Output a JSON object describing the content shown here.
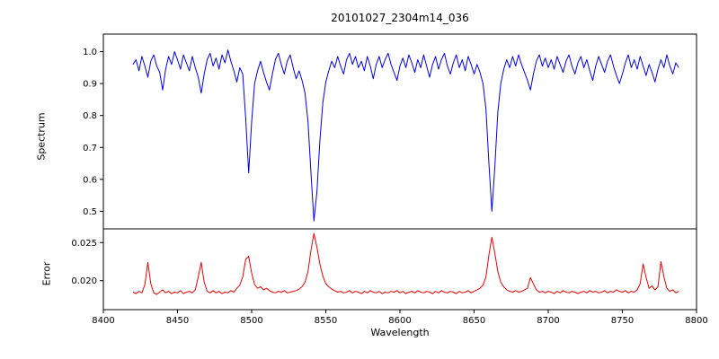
{
  "figure": {
    "title": "20101027_2304m14_036",
    "xlabel": "Wavelength",
    "ylabel_top": "Spectrum",
    "ylabel_bottom": "Error",
    "background": "#ffffff",
    "axis_color": "#000000"
  },
  "chart_data": [
    {
      "type": "line",
      "name": "spectrum",
      "ylabel": "Spectrum",
      "color": "#0000ee",
      "xlim": [
        8400,
        8800
      ],
      "ylim": [
        0.445,
        1.055
      ],
      "yticks": [
        1.0,
        0.9,
        0.8,
        0.7,
        0.6,
        0.5
      ],
      "ytick_labels": [
        "1.0",
        "0.9",
        "0.8",
        "0.7",
        "0.6",
        "0.5"
      ],
      "x_start": 8420,
      "x_step": 2,
      "absorption_features": [
        {
          "center": 8498,
          "min_value": 0.62
        },
        {
          "center": 8542,
          "min_value": 0.47
        },
        {
          "center": 8662,
          "min_value": 0.5
        }
      ],
      "y": [
        0.96,
        0.975,
        0.94,
        0.985,
        0.955,
        0.92,
        0.97,
        0.99,
        0.955,
        0.935,
        0.88,
        0.945,
        0.985,
        0.96,
        1.0,
        0.975,
        0.945,
        0.99,
        0.965,
        0.94,
        0.985,
        0.95,
        0.92,
        0.87,
        0.93,
        0.975,
        0.995,
        0.955,
        0.98,
        0.945,
        0.99,
        0.965,
        1.005,
        0.97,
        0.94,
        0.905,
        0.95,
        0.93,
        0.79,
        0.62,
        0.78,
        0.9,
        0.94,
        0.97,
        0.935,
        0.905,
        0.88,
        0.93,
        0.975,
        0.995,
        0.96,
        0.93,
        0.97,
        0.99,
        0.95,
        0.915,
        0.94,
        0.91,
        0.87,
        0.78,
        0.62,
        0.47,
        0.56,
        0.72,
        0.84,
        0.905,
        0.94,
        0.97,
        0.95,
        0.985,
        0.955,
        0.93,
        0.975,
        0.995,
        0.96,
        0.985,
        0.95,
        0.97,
        0.94,
        0.985,
        0.955,
        0.915,
        0.96,
        0.985,
        0.95,
        0.975,
        0.995,
        0.96,
        0.935,
        0.91,
        0.955,
        0.98,
        0.95,
        0.99,
        0.965,
        0.935,
        0.975,
        0.95,
        0.99,
        0.955,
        0.92,
        0.96,
        0.985,
        0.945,
        0.975,
        0.995,
        0.955,
        0.93,
        0.965,
        0.99,
        0.95,
        0.975,
        0.94,
        0.985,
        0.96,
        0.93,
        0.96,
        0.935,
        0.9,
        0.82,
        0.65,
        0.5,
        0.64,
        0.81,
        0.9,
        0.945,
        0.975,
        0.95,
        0.985,
        0.955,
        0.99,
        0.96,
        0.935,
        0.91,
        0.88,
        0.93,
        0.97,
        0.99,
        0.955,
        0.98,
        0.95,
        0.975,
        0.945,
        0.985,
        0.96,
        0.935,
        0.97,
        0.99,
        0.955,
        0.93,
        0.965,
        0.985,
        0.95,
        0.975,
        0.94,
        0.91,
        0.955,
        0.985,
        0.96,
        0.935,
        0.97,
        0.99,
        0.955,
        0.925,
        0.9,
        0.93,
        0.965,
        0.99,
        0.95,
        0.975,
        0.945,
        0.985,
        0.955,
        0.925,
        0.96,
        0.935,
        0.905,
        0.945,
        0.975,
        0.95,
        0.99,
        0.955,
        0.93,
        0.965,
        0.95
      ]
    },
    {
      "type": "line",
      "name": "error",
      "ylabel": "Error",
      "color": "#ee0000",
      "xlim": [
        8400,
        8800
      ],
      "ylim": [
        0.0162,
        0.0268
      ],
      "yticks": [
        0.025,
        0.02
      ],
      "ytick_labels": [
        "0.025",
        "0.020"
      ],
      "xticks": [
        8400,
        8450,
        8500,
        8550,
        8600,
        8650,
        8700,
        8750,
        8800
      ],
      "x_start": 8420,
      "x_step": 2,
      "y": [
        0.0185,
        0.0183,
        0.0186,
        0.0184,
        0.0195,
        0.0224,
        0.0196,
        0.0184,
        0.0182,
        0.0185,
        0.0188,
        0.0184,
        0.0186,
        0.0183,
        0.0185,
        0.0184,
        0.0187,
        0.0183,
        0.0185,
        0.0186,
        0.0184,
        0.0188,
        0.0205,
        0.0224,
        0.0198,
        0.0186,
        0.0184,
        0.0187,
        0.0184,
        0.0186,
        0.0183,
        0.0185,
        0.0184,
        0.0187,
        0.0185,
        0.019,
        0.0194,
        0.0205,
        0.0228,
        0.0232,
        0.021,
        0.0195,
        0.019,
        0.0192,
        0.0188,
        0.019,
        0.0187,
        0.0185,
        0.0184,
        0.0186,
        0.0185,
        0.0187,
        0.0184,
        0.0185,
        0.0186,
        0.0187,
        0.0189,
        0.0192,
        0.0198,
        0.0212,
        0.024,
        0.0262,
        0.0244,
        0.0222,
        0.0206,
        0.0196,
        0.0192,
        0.0189,
        0.0187,
        0.0185,
        0.0186,
        0.0184,
        0.0185,
        0.0187,
        0.0184,
        0.0186,
        0.0185,
        0.0183,
        0.0186,
        0.0184,
        0.0187,
        0.0185,
        0.0184,
        0.0186,
        0.0183,
        0.0185,
        0.0184,
        0.0186,
        0.0185,
        0.0187,
        0.0184,
        0.0186,
        0.0183,
        0.0185,
        0.0186,
        0.0184,
        0.0187,
        0.0185,
        0.0184,
        0.0186,
        0.0185,
        0.0183,
        0.0186,
        0.0184,
        0.0187,
        0.0185,
        0.0184,
        0.0186,
        0.0185,
        0.0183,
        0.0186,
        0.0184,
        0.0185,
        0.0187,
        0.0184,
        0.0186,
        0.0188,
        0.019,
        0.0194,
        0.0205,
        0.0234,
        0.0257,
        0.0236,
        0.0212,
        0.0198,
        0.0192,
        0.0188,
        0.0186,
        0.0185,
        0.0187,
        0.0185,
        0.0186,
        0.0188,
        0.019,
        0.0204,
        0.0196,
        0.0188,
        0.0185,
        0.0186,
        0.0184,
        0.0186,
        0.0185,
        0.0183,
        0.0186,
        0.0184,
        0.0187,
        0.0185,
        0.0184,
        0.0186,
        0.0185,
        0.0183,
        0.0185,
        0.0186,
        0.0184,
        0.0187,
        0.0185,
        0.0186,
        0.0184,
        0.0185,
        0.0187,
        0.0184,
        0.0186,
        0.0185,
        0.0188,
        0.0186,
        0.0185,
        0.0187,
        0.0184,
        0.0186,
        0.0185,
        0.0188,
        0.0196,
        0.0222,
        0.0204,
        0.019,
        0.0193,
        0.0188,
        0.0192,
        0.0225,
        0.0205,
        0.019,
        0.0186,
        0.0188,
        0.0184,
        0.0186
      ]
    }
  ]
}
